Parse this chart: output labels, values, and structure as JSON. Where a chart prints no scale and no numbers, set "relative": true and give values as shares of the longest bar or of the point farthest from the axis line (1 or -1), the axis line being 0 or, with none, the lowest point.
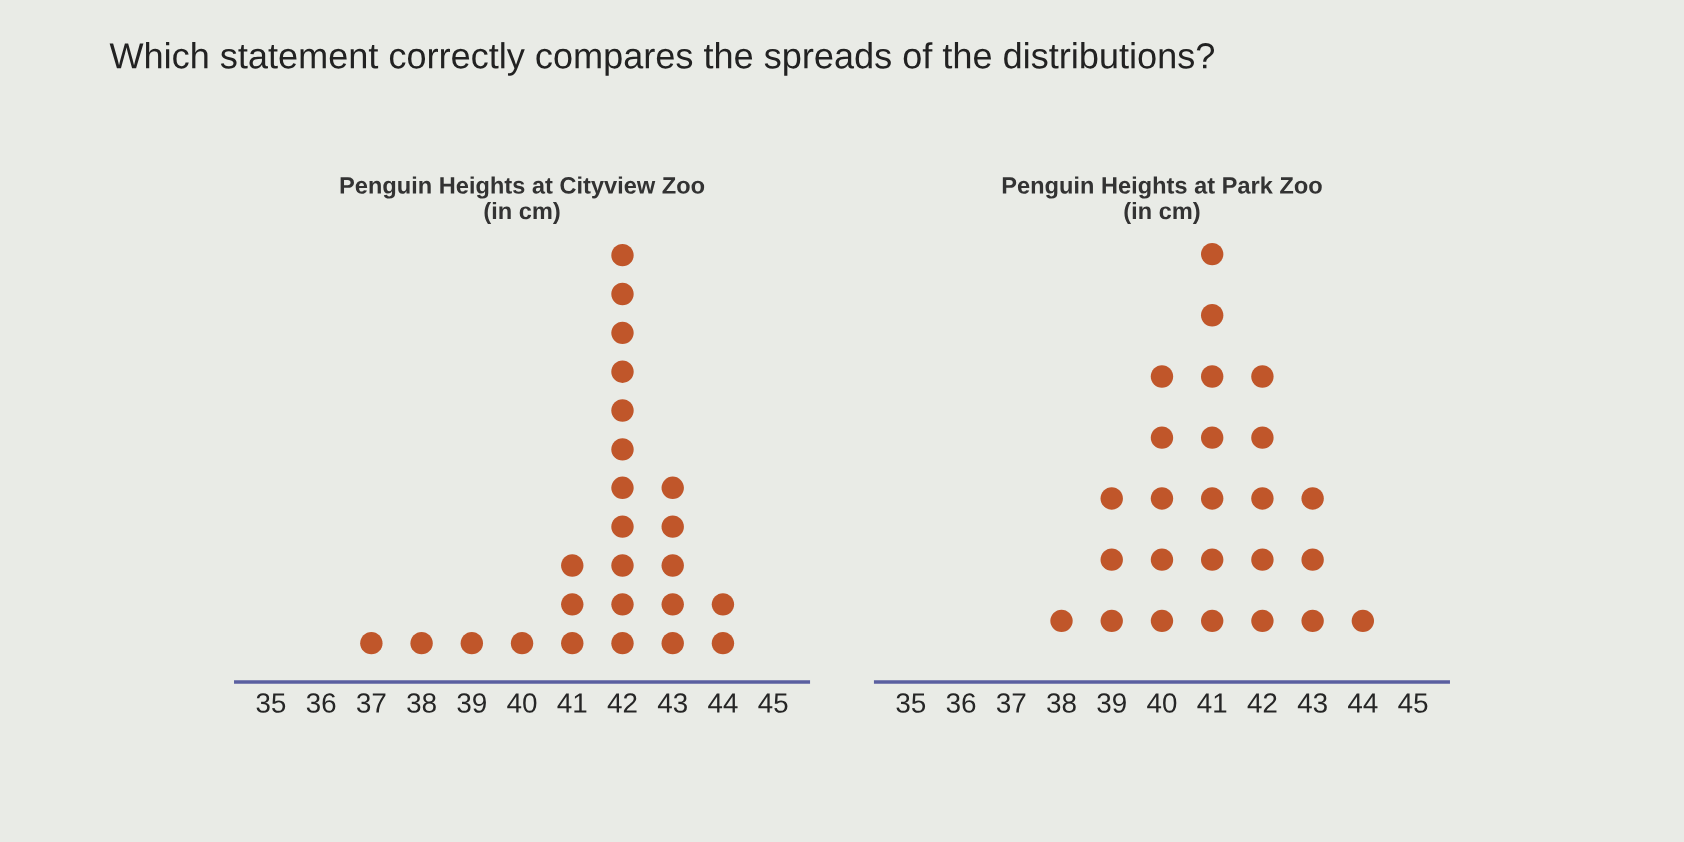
{
  "chart_data": [
    {
      "type": "scatter",
      "title": "Penguin Heights at Cityview Zoo\n(in cm)",
      "annotations": [
        "Which statement correctly compares the spreads of the distributions?"
      ],
      "series": [
        {
          "color": "#c0562a",
          "x": [
            37,
            38,
            39,
            40,
            41,
            41,
            41,
            42,
            42,
            42,
            42,
            42,
            42,
            42,
            42,
            42,
            42,
            42,
            43,
            43,
            43,
            43,
            43,
            44,
            44
          ],
          "values": [
            0.091,
            0.091,
            0.091,
            0.091,
            0.091,
            0.182,
            0.273,
            0.091,
            0.182,
            0.273,
            0.364,
            0.455,
            0.545,
            0.636,
            0.727,
            0.818,
            0.909,
            1,
            0.091,
            0.182,
            0.273,
            0.364,
            0.455,
            0.091,
            0.182
          ]
        }
      ],
      "relative": true,
      "marker": "circle",
      "xlim": [
        34.3,
        45.7
      ],
      "xticks": [
        35,
        36,
        37,
        38,
        39,
        40,
        41,
        42,
        43,
        44,
        45
      ],
      "tick_labels": "x"
    },
    {
      "type": "scatter",
      "title": "Penguin Heights at Park Zoo\n(in cm)",
      "series": [
        {
          "color": "#c0562a",
          "x": [
            38,
            39,
            39,
            39,
            40,
            40,
            40,
            40,
            40,
            41,
            41,
            41,
            41,
            41,
            41,
            41,
            42,
            42,
            42,
            42,
            42,
            43,
            43,
            43,
            44
          ],
          "values": [
            0.143,
            0.143,
            0.286,
            0.429,
            0.143,
            0.286,
            0.429,
            0.571,
            0.714,
            0.143,
            0.286,
            0.429,
            0.571,
            0.714,
            0.857,
            1,
            0.143,
            0.286,
            0.429,
            0.571,
            0.714,
            0.143,
            0.286,
            0.429,
            0.143
          ]
        }
      ],
      "relative": true,
      "marker": "circle",
      "xlim": [
        34.3,
        45.7
      ],
      "xticks": [
        35,
        36,
        37,
        38,
        39,
        40,
        41,
        42,
        43,
        44,
        45
      ],
      "tick_labels": "x"
    }
  ]
}
